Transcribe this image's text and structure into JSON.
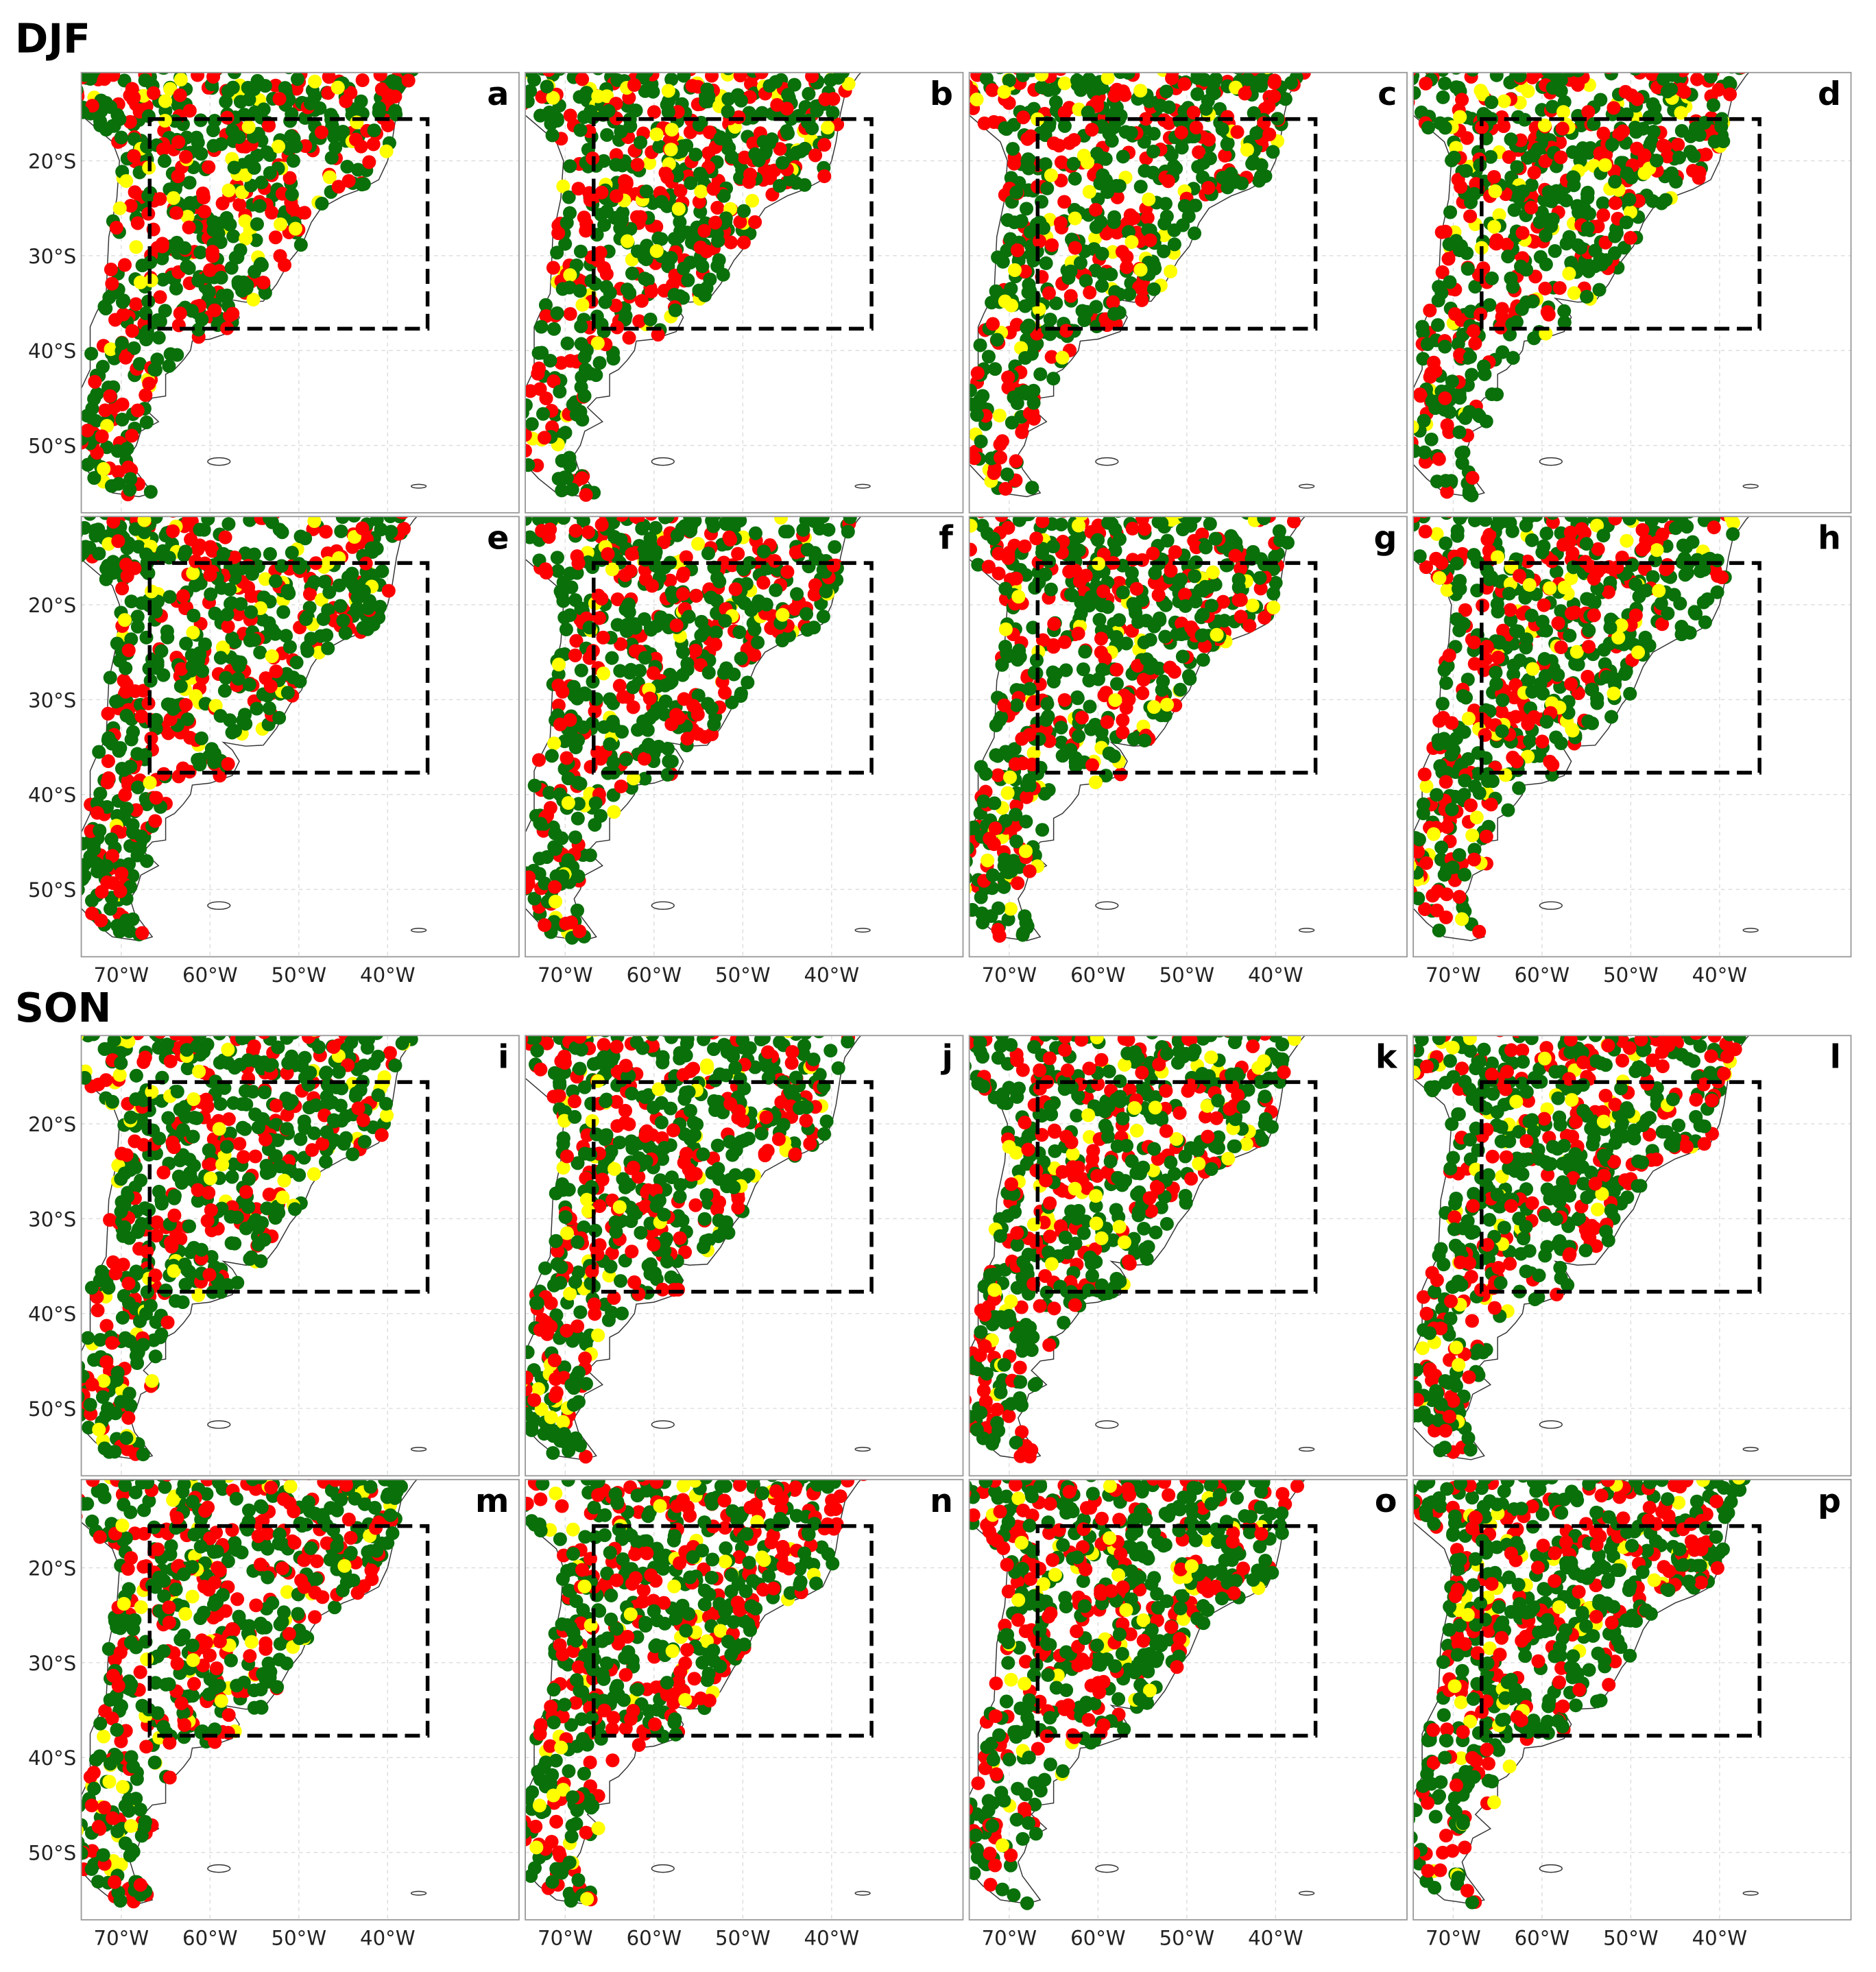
{
  "groups": [
    {
      "title": "DJF",
      "panels": [
        "a",
        "b",
        "c",
        "d",
        "e",
        "f",
        "g",
        "h"
      ]
    },
    {
      "title": "SON",
      "panels": [
        "i",
        "j",
        "k",
        "l",
        "m",
        "n",
        "o",
        "p"
      ]
    }
  ],
  "xlim": [
    -74.5,
    -25.2
  ],
  "ylim": [
    -57.1,
    -10.7
  ],
  "xticks": [
    {
      "value": -70,
      "label": "70°W"
    },
    {
      "value": -60,
      "label": "60°W"
    },
    {
      "value": -50,
      "label": "50°W"
    },
    {
      "value": -40,
      "label": "40°W"
    }
  ],
  "yticks": [
    {
      "value": -20,
      "label": "20°S"
    },
    {
      "value": -30,
      "label": "30°S"
    },
    {
      "value": -40,
      "label": "40°S"
    },
    {
      "value": -50,
      "label": "50°S"
    }
  ]
}
